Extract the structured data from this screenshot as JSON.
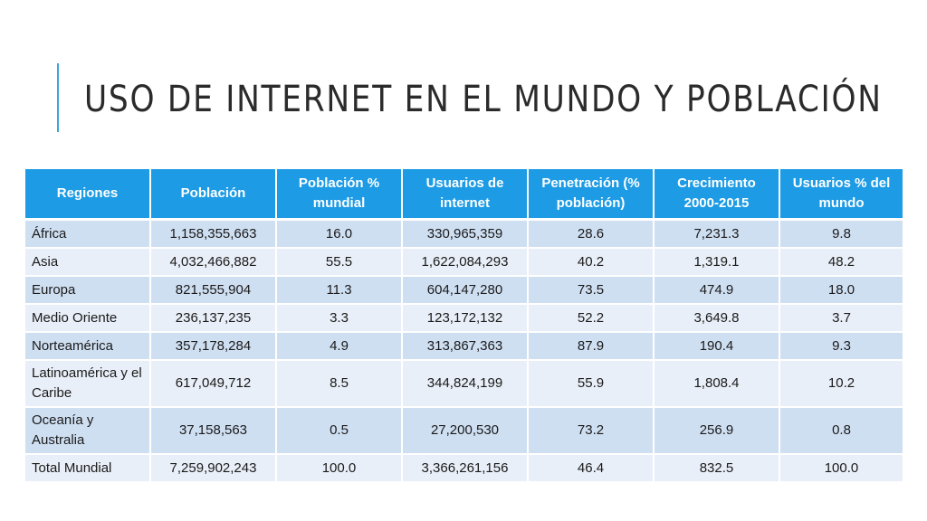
{
  "slide": {
    "title": "USO DE INTERNET EN EL MUNDO Y POBLACIÓN",
    "accent_color": "#3aa6d8",
    "header_color": "#1d9be4"
  },
  "table": {
    "headers": [
      "Regiones",
      "Población",
      "Población % mundial",
      "Usuarios de internet",
      "Penetración (% población)",
      "Crecimiento 2000-2015",
      "Usuarios % del mundo"
    ],
    "rows": [
      [
        "África",
        "1,158,355,663",
        "16.0",
        "330,965,359",
        "28.6",
        "7,231.3",
        "9.8"
      ],
      [
        "Asia",
        "4,032,466,882",
        "55.5",
        "1,622,084,293",
        "40.2",
        "1,319.1",
        "48.2"
      ],
      [
        "Europa",
        "821,555,904",
        "11.3",
        "604,147,280",
        "73.5",
        "474.9",
        "18.0"
      ],
      [
        "Medio Oriente",
        "236,137,235",
        "3.3",
        "123,172,132",
        "52.2",
        "3,649.8",
        "3.7"
      ],
      [
        "Norteamérica",
        "357,178,284",
        "4.9",
        "313,867,363",
        "87.9",
        "190.4",
        "9.3"
      ],
      [
        "Latinoamérica y el Caribe",
        "617,049,712",
        "8.5",
        "344,824,199",
        "55.9",
        "1,808.4",
        "10.2"
      ],
      [
        "Oceanía y Australia",
        "37,158,563",
        "0.5",
        "27,200,530",
        "73.2",
        "256.9",
        "0.8"
      ],
      [
        "Total Mundial",
        "7,259,902,243",
        "100.0",
        "3,366,261,156",
        "46.4",
        "832.5",
        "100.0"
      ]
    ]
  }
}
